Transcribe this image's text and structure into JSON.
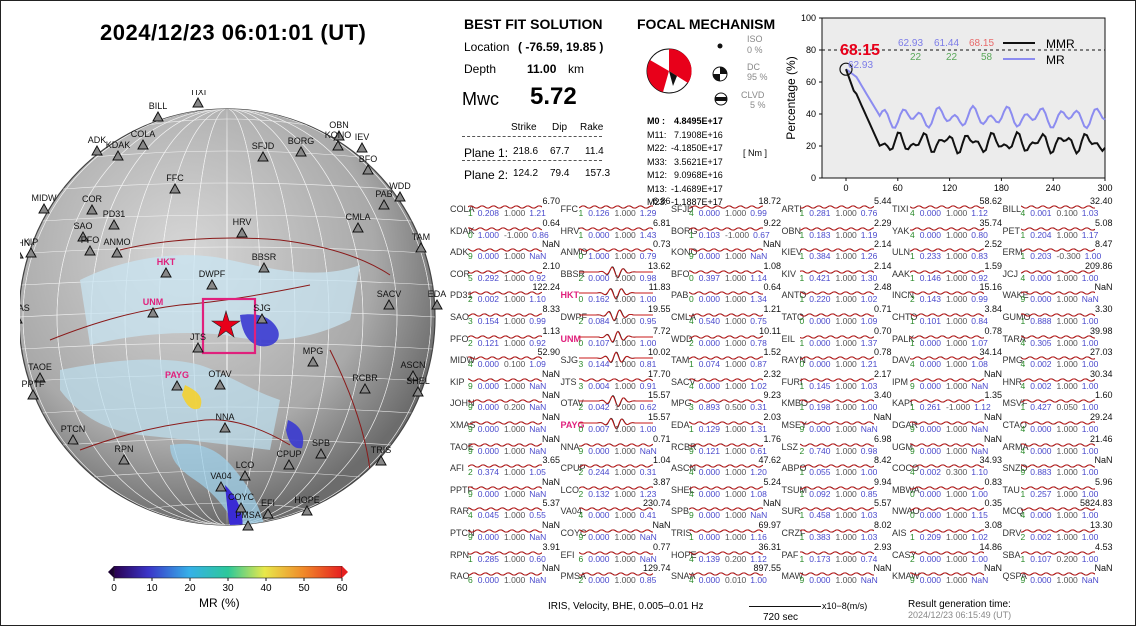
{
  "header": {
    "datetime": "2024/12/23  06:01:01 (UT)"
  },
  "map": {
    "stations": [
      {
        "code": "TIXI",
        "x": 198,
        "y": 103,
        "bold": false
      },
      {
        "code": "BILL",
        "x": 158,
        "y": 117,
        "bold": false
      },
      {
        "code": "ADK",
        "x": 97,
        "y": 151,
        "bold": false
      },
      {
        "code": "KDAK",
        "x": 118,
        "y": 156,
        "bold": false
      },
      {
        "code": "COLA",
        "x": 143,
        "y": 145,
        "bold": false
      },
      {
        "code": "OBN",
        "x": 339,
        "y": 136,
        "bold": false
      },
      {
        "code": "KONO",
        "x": 338,
        "y": 146,
        "bold": false
      },
      {
        "code": "IEV",
        "x": 362,
        "y": 148,
        "bold": false
      },
      {
        "code": "SFJD",
        "x": 263,
        "y": 157,
        "bold": false
      },
      {
        "code": "BORG",
        "x": 301,
        "y": 152,
        "bold": false
      },
      {
        "code": "BFO",
        "x": 368,
        "y": 170,
        "bold": false
      },
      {
        "code": "WDD",
        "x": 400,
        "y": 197,
        "bold": false
      },
      {
        "code": "PAB",
        "x": 384,
        "y": 205,
        "bold": false
      },
      {
        "code": "FFC",
        "x": 175,
        "y": 189,
        "bold": false
      },
      {
        "code": "MIDW",
        "x": 44,
        "y": 209,
        "bold": false
      },
      {
        "code": "COR",
        "x": 92,
        "y": 210,
        "bold": false
      },
      {
        "code": "SAO",
        "x": 83,
        "y": 237,
        "bold": false
      },
      {
        "code": "PD31",
        "x": 114,
        "y": 225,
        "bold": false
      },
      {
        "code": "HRV",
        "x": 242,
        "y": 233,
        "bold": false
      },
      {
        "code": "CMLA",
        "x": 358,
        "y": 228,
        "bold": false
      },
      {
        "code": "PFO",
        "x": 90,
        "y": 251,
        "bold": false
      },
      {
        "code": "ANMO",
        "x": 117,
        "y": 253,
        "bold": false
      },
      {
        "code": "JOHN",
        "x": 18,
        "y": 254,
        "bold": false
      },
      {
        "code": "KIP",
        "x": 31,
        "y": 253,
        "bold": false
      },
      {
        "code": "TAM",
        "x": 421,
        "y": 248,
        "bold": false
      },
      {
        "code": "HKT",
        "x": 166,
        "y": 273,
        "bold": true
      },
      {
        "code": "BBSR",
        "x": 264,
        "y": 268,
        "bold": false
      },
      {
        "code": "DWPF",
        "x": 212,
        "y": 285,
        "bold": false
      },
      {
        "code": "SACV",
        "x": 389,
        "y": 305,
        "bold": false
      },
      {
        "code": "EDA",
        "x": 437,
        "y": 305,
        "bold": false
      },
      {
        "code": "UNM",
        "x": 153,
        "y": 313,
        "bold": true
      },
      {
        "code": "SJG",
        "x": 262,
        "y": 319,
        "bold": false
      },
      {
        "code": "XMAS",
        "x": 17,
        "y": 319,
        "bold": false
      },
      {
        "code": "JTS",
        "x": 198,
        "y": 348,
        "bold": false
      },
      {
        "code": "MPG",
        "x": 313,
        "y": 362,
        "bold": false
      },
      {
        "code": "TAOE",
        "x": 40,
        "y": 378,
        "bold": false
      },
      {
        "code": "ASCN",
        "x": 413,
        "y": 376,
        "bold": false
      },
      {
        "code": "PAYG",
        "x": 177,
        "y": 386,
        "bold": true
      },
      {
        "code": "OTAV",
        "x": 220,
        "y": 385,
        "bold": false
      },
      {
        "code": "RCBR",
        "x": 365,
        "y": 389,
        "bold": false
      },
      {
        "code": "PPTF",
        "x": 33,
        "y": 395,
        "bold": false
      },
      {
        "code": "SHEL",
        "x": 418,
        "y": 392,
        "bold": false
      },
      {
        "code": "NNA",
        "x": 225,
        "y": 428,
        "bold": false
      },
      {
        "code": "PTCN",
        "x": 73,
        "y": 440,
        "bold": false
      },
      {
        "code": "SPB",
        "x": 321,
        "y": 454,
        "bold": false
      },
      {
        "code": "TRIS",
        "x": 381,
        "y": 461,
        "bold": false
      },
      {
        "code": "RPN",
        "x": 124,
        "y": 460,
        "bold": false
      },
      {
        "code": "CPUP",
        "x": 289,
        "y": 465,
        "bold": false
      },
      {
        "code": "LCO",
        "x": 245,
        "y": 476,
        "bold": false
      },
      {
        "code": "VA04",
        "x": 221,
        "y": 487,
        "bold": false
      },
      {
        "code": "COYC",
        "x": 241,
        "y": 508,
        "bold": false
      },
      {
        "code": "EFI",
        "x": 268,
        "y": 514,
        "bold": false
      },
      {
        "code": "HOPE",
        "x": 307,
        "y": 511,
        "bold": false
      },
      {
        "code": "PMSA",
        "x": 248,
        "y": 526,
        "bold": false
      }
    ],
    "colorbar": {
      "ticks": [
        "0",
        "10",
        "20",
        "30",
        "40",
        "50",
        "60"
      ],
      "label": "MR (%)"
    }
  },
  "solution": {
    "title": "BEST FIT SOLUTION",
    "location_label": "Location",
    "location_value": "( -76.59,  19.85 )",
    "depth_label": "Depth",
    "depth_value": "11.00",
    "depth_unit": "km",
    "mw_label": "Mwc",
    "mw_value": "5.72",
    "col_strike": "Strike",
    "col_dip": "Dip",
    "col_rake": "Rake",
    "plane1_label": "Plane 1:",
    "plane1": [
      "218.6",
      "67.7",
      "11.4"
    ],
    "plane2_label": "Plane 2:",
    "plane2": [
      "124.2",
      "79.4",
      "157.3"
    ]
  },
  "mechanism": {
    "title": "FOCAL MECHANISM",
    "iso_label": "ISO",
    "iso_value": "0 %",
    "dc_label": "DC",
    "dc_value": "95 %",
    "clvd_label": "CLVD",
    "clvd_value": "5 %",
    "tensor": [
      [
        "M0",
        "4.8495E+17"
      ],
      [
        "M11",
        "7.1908E+16"
      ],
      [
        "M22",
        "-4.1850E+17"
      ],
      [
        "M33",
        "3.5621E+17"
      ],
      [
        "M12",
        "9.0968E+16"
      ],
      [
        "M13",
        "-1.4689E+17"
      ],
      [
        "M23",
        "-1.1887E+17"
      ]
    ],
    "unit": "[ Nm ]"
  },
  "mmr_chart": {
    "y_label": "Percentage (%)",
    "x_label": "Time (sec)",
    "y_ticks": [
      "0",
      "20",
      "40",
      "60",
      "80",
      "100"
    ],
    "x_ticks": [
      "0",
      "60",
      "120",
      "180",
      "240",
      "300"
    ],
    "peak_value": "68.15",
    "peak_sub": "62.93",
    "top_vals": [
      "62.93",
      "61.44",
      "68.15"
    ],
    "bot_vals": [
      "22",
      "22",
      "58"
    ],
    "legend": [
      "MMR",
      "MR"
    ],
    "threshold": 80
  },
  "waveforms": [
    [
      "COLA",
      "6.70",
      "1",
      "0.208",
      "1.000",
      "1.21"
    ],
    [
      "KDAK",
      "0.64",
      "0",
      "1.000",
      "-1.000",
      "0.86"
    ],
    [
      "ADK",
      "NaN",
      "9",
      "0.000",
      "1.000",
      "NaN"
    ],
    [
      "COR",
      "2.10",
      "5",
      "0.292",
      "1.000",
      "0.92"
    ],
    [
      "PD31",
      "122.24",
      "2",
      "0.002",
      "1.000",
      "1.10"
    ],
    [
      "SAO",
      "8.33",
      "3",
      "0.154",
      "1.000",
      "0.99"
    ],
    [
      "PFO",
      "1.13",
      "2",
      "0.121",
      "1.000",
      "0.92"
    ],
    [
      "MIDW",
      "52.90",
      "4",
      "0.000",
      "0.100",
      "1.09"
    ],
    [
      "KIP",
      "NaN",
      "9",
      "0.000",
      "1.000",
      "NaN"
    ],
    [
      "JOHN",
      "NaN",
      "9",
      "0.000",
      "0.200",
      "NaN"
    ],
    [
      "XMAS",
      "NaN",
      "9",
      "0.000",
      "1.000",
      "NaN"
    ],
    [
      "TAOE",
      "NaN",
      "9",
      "0.000",
      "1.000",
      "NaN"
    ],
    [
      "AFI",
      "3.65",
      "2",
      "0.374",
      "1.000",
      "1.05"
    ],
    [
      "PPTF",
      "NaN",
      "9",
      "0.000",
      "1.000",
      "NaN"
    ],
    [
      "RAR",
      "5.37",
      "4",
      "0.045",
      "1.000",
      "0.55"
    ],
    [
      "PTCN",
      "NaN",
      "9",
      "0.000",
      "1.000",
      "NaN"
    ],
    [
      "RPN",
      "3.91",
      "1",
      "0.285",
      "1.000",
      "0.60"
    ],
    [
      "RAO",
      "NaN",
      "6",
      "0.000",
      "1.000",
      "NaN"
    ],
    [
      "FFC",
      "6.86",
      "1",
      "0.126",
      "1.000",
      "1.29"
    ],
    [
      "HRV",
      "6.81",
      "1",
      "0.000",
      "1.000",
      "1.43"
    ],
    [
      "ANMO",
      "0.73",
      "0",
      "1.000",
      "1.000",
      "0.79"
    ],
    [
      "BBSR",
      "13.62",
      "2",
      "0.000",
      "1.000",
      "0.98"
    ],
    [
      "HKT",
      "11.83",
      "0",
      "0.162",
      "1.000",
      "1.00"
    ],
    [
      "DWPF",
      "19.55",
      "2",
      "0.084",
      "1.000",
      "0.95"
    ],
    [
      "UNM",
      "7.72",
      "0",
      "0.107",
      "1.000",
      "1.00"
    ],
    [
      "SJG",
      "10.02",
      "3",
      "0.144",
      "1.000",
      "0.81"
    ],
    [
      "JTS",
      "17.70",
      "3",
      "0.004",
      "1.000",
      "0.91"
    ],
    [
      "OTAV",
      "15.57",
      "2",
      "0.042",
      "1.000",
      "0.62"
    ],
    [
      "PAYG",
      "15.57",
      "0",
      "0.007",
      "1.000",
      "1.00"
    ],
    [
      "NNA",
      "0.71",
      "9",
      "0.000",
      "1.000",
      "NaN"
    ],
    [
      "CPUP",
      "1.04",
      "2",
      "0.244",
      "1.000",
      "0.31"
    ],
    [
      "LCO",
      "3.87",
      "2",
      "0.132",
      "1.000",
      "1.23"
    ],
    [
      "VA04",
      "230.74",
      "4",
      "0.000",
      "1.000",
      "0.41"
    ],
    [
      "COYC",
      "NaN",
      "9",
      "0.000",
      "1.000",
      "NaN"
    ],
    [
      "EFI",
      "0.77",
      "6",
      "0.000",
      "1.000",
      "NaN"
    ],
    [
      "PMSA",
      "129.74",
      "2",
      "0.000",
      "1.000",
      "0.85"
    ],
    [
      "SFJD",
      "18.72",
      "4",
      "0.000",
      "1.000",
      "0.99"
    ],
    [
      "BORG",
      "9.22",
      "1",
      "0.103",
      "-1.000",
      "0.67"
    ],
    [
      "KONO",
      "NaN",
      "9",
      "0.000",
      "1.000",
      "NaN"
    ],
    [
      "BFO",
      "1.08",
      "0",
      "0.397",
      "1.000",
      "1.14"
    ],
    [
      "PAB",
      "0.64",
      "0",
      "0.000",
      "1.000",
      "1.34"
    ],
    [
      "CMLA",
      "1.21",
      "4",
      "0.540",
      "1.000",
      "0.75"
    ],
    [
      "WDD",
      "10.11",
      "2",
      "0.000",
      "1.000",
      "0.78"
    ],
    [
      "TAM",
      "1.52",
      "1",
      "0.074",
      "1.000",
      "0.87"
    ],
    [
      "SACV",
      "2.32",
      "4",
      "0.000",
      "1.000",
      "1.02"
    ],
    [
      "MPG",
      "9.23",
      "3",
      "0.893",
      "0.500",
      "0.31"
    ],
    [
      "EDA",
      "2.03",
      "1",
      "0.129",
      "1.000",
      "1.31"
    ],
    [
      "RCBR",
      "1.76",
      "9",
      "0.121",
      "1.000",
      "0.61"
    ],
    [
      "ASCN",
      "47.62",
      "4",
      "0.000",
      "1.000",
      "1.20"
    ],
    [
      "SHEL",
      "5.24",
      "4",
      "0.000",
      "1.000",
      "1.08"
    ],
    [
      "SPB",
      "NaN",
      "9",
      "0.000",
      "1.000",
      "NaN"
    ],
    [
      "TRIS",
      "69.97",
      "1",
      "0.000",
      "1.000",
      "1.16"
    ],
    [
      "HOPE",
      "36.31",
      "4",
      "0.139",
      "0.200",
      "1.12"
    ],
    [
      "SNAA",
      "897.55",
      "4",
      "0.000",
      "0.010",
      "1.00"
    ],
    [
      "ARTI",
      "5.44",
      "1",
      "0.281",
      "1.000",
      "0.76"
    ],
    [
      "OBN",
      "2.29",
      "1",
      "0.183",
      "1.000",
      "1.19"
    ],
    [
      "KIEV",
      "2.14",
      "1",
      "0.384",
      "1.000",
      "1.26"
    ],
    [
      "KIV",
      "2.14",
      "1",
      "0.421",
      "1.000",
      "1.30"
    ],
    [
      "ANTO",
      "2.48",
      "1",
      "0.220",
      "1.000",
      "1.02"
    ],
    [
      "TATO",
      "0.71",
      "0",
      "0.000",
      "1.000",
      "1.09"
    ],
    [
      "EIL",
      "0.70",
      "1",
      "0.000",
      "1.000",
      "1.37"
    ],
    [
      "RAYN",
      "0.78",
      "0",
      "0.000",
      "1.000",
      "1.21"
    ],
    [
      "FURI",
      "2.17",
      "1",
      "0.145",
      "1.000",
      "1.03"
    ],
    [
      "KMBO",
      "3.40",
      "1",
      "0.198",
      "1.000",
      "1.00"
    ],
    [
      "MSEY",
      "NaN",
      "9",
      "0.000",
      "1.000",
      "NaN"
    ],
    [
      "LSZ",
      "6.98",
      "2",
      "0.740",
      "1.000",
      "0.98"
    ],
    [
      "ABPO",
      "8.42",
      "1",
      "0.055",
      "1.000",
      "1.00"
    ],
    [
      "TSUM",
      "9.94",
      "1",
      "0.092",
      "1.000",
      "0.85"
    ],
    [
      "SUR",
      "5.57",
      "1",
      "0.458",
      "1.000",
      "1.03"
    ],
    [
      "CRZF",
      "8.02",
      "1",
      "0.383",
      "1.000",
      "1.03"
    ],
    [
      "PAF",
      "2.93",
      "1",
      "0.173",
      "1.000",
      "0.74"
    ],
    [
      "MAW",
      "NaN",
      "9",
      "0.000",
      "1.000",
      "NaN"
    ],
    [
      "TIXI",
      "58.62",
      "4",
      "0.000",
      "1.000",
      "1.12"
    ],
    [
      "YAK",
      "35.74",
      "4",
      "0.000",
      "1.000",
      "0.80"
    ],
    [
      "ULN",
      "2.52",
      "1",
      "0.233",
      "1.000",
      "0.83"
    ],
    [
      "AAK",
      "1.59",
      "1",
      "0.146",
      "1.000",
      "0.92"
    ],
    [
      "INCN",
      "15.16",
      "2",
      "0.143",
      "1.000",
      "0.99"
    ],
    [
      "CHTO",
      "3.84",
      "1",
      "0.101",
      "1.000",
      "0.84"
    ],
    [
      "PALK",
      "0.78",
      "1",
      "0.000",
      "1.000",
      "1.07"
    ],
    [
      "DAV",
      "34.14",
      "4",
      "0.000",
      "1.000",
      "1.08"
    ],
    [
      "IPM",
      "NaN",
      "9",
      "0.000",
      "1.000",
      "NaN"
    ],
    [
      "KAPI",
      "1.35",
      "1",
      "0.261",
      "-1.000",
      "1.12"
    ],
    [
      "DGAR",
      "NaN",
      "9",
      "0.000",
      "1.000",
      "NaN"
    ],
    [
      "UGM",
      "NaN",
      "9",
      "0.000",
      "1.000",
      "NaN"
    ],
    [
      "COCO",
      "34.93",
      "4",
      "0.002",
      "0.300",
      "1.10"
    ],
    [
      "MBWA",
      "0.83",
      "0",
      "0.000",
      "1.000",
      "1.00"
    ],
    [
      "NWAO",
      "0.35",
      "0",
      "0.000",
      "1.000",
      "1.15"
    ],
    [
      "AIS",
      "3.08",
      "1",
      "0.209",
      "1.000",
      "1.02"
    ],
    [
      "CASY",
      "14.86",
      "2",
      "0.000",
      "1.000",
      "1.00"
    ],
    [
      "KMAW",
      "NaN",
      "9",
      "0.000",
      "1.000",
      "NaN"
    ],
    [
      "BILL",
      "32.40",
      "4",
      "0.001",
      "0.100",
      "1.03"
    ],
    [
      "PET",
      "5.08",
      "1",
      "0.204",
      "1.000",
      "1.17"
    ],
    [
      "ERM",
      "8.47",
      "1",
      "0.203",
      "-0.300",
      "1.00"
    ],
    [
      "JCJ",
      "209.86",
      "4",
      "0.000",
      "1.000",
      "1.00"
    ],
    [
      "WAKE",
      "NaN",
      "9",
      "0.000",
      "1.000",
      "NaN"
    ],
    [
      "GUMO",
      "3.30",
      "1",
      "0.888",
      "1.000",
      "1.00"
    ],
    [
      "TARA",
      "39.98",
      "4",
      "0.305",
      "1.000",
      "1.00"
    ],
    [
      "PMG",
      "27.03",
      "4",
      "0.002",
      "1.000",
      "1.00"
    ],
    [
      "HNR",
      "30.34",
      "4",
      "0.002",
      "1.000",
      "1.00"
    ],
    [
      "MSVF",
      "1.60",
      "1",
      "0.427",
      "0.050",
      "1.00"
    ],
    [
      "CTAO",
      "29.24",
      "4",
      "0.000",
      "1.000",
      "1.00"
    ],
    [
      "ARMA",
      "21.46",
      "4",
      "0.000",
      "1.000",
      "1.00"
    ],
    [
      "SNZO",
      "NaN",
      "9",
      "0.883",
      "1.000",
      "1.00"
    ],
    [
      "TAU",
      "5.96",
      "1",
      "0.257",
      "1.000",
      "1.00"
    ],
    [
      "MCQ",
      "5824.83",
      "4",
      "0.000",
      "1.000",
      "1.00"
    ],
    [
      "DRV",
      "13.30",
      "2",
      "0.002",
      "1.000",
      "1.00"
    ],
    [
      "SBA",
      "4.53",
      "1",
      "0.107",
      "0.200",
      "1.00"
    ],
    [
      "QSPA",
      "NaN",
      "9",
      "0.000",
      "1.000",
      "NaN"
    ]
  ],
  "footer": {
    "iris": "IRIS,  Velocity,   BHE,  0.005–0.01 Hz",
    "scale": "x10−8(m/s)",
    "span": "720 sec",
    "gen_title": "Result generation time:",
    "gen_time": "2024/12/23  06:15:49  (UT)"
  }
}
